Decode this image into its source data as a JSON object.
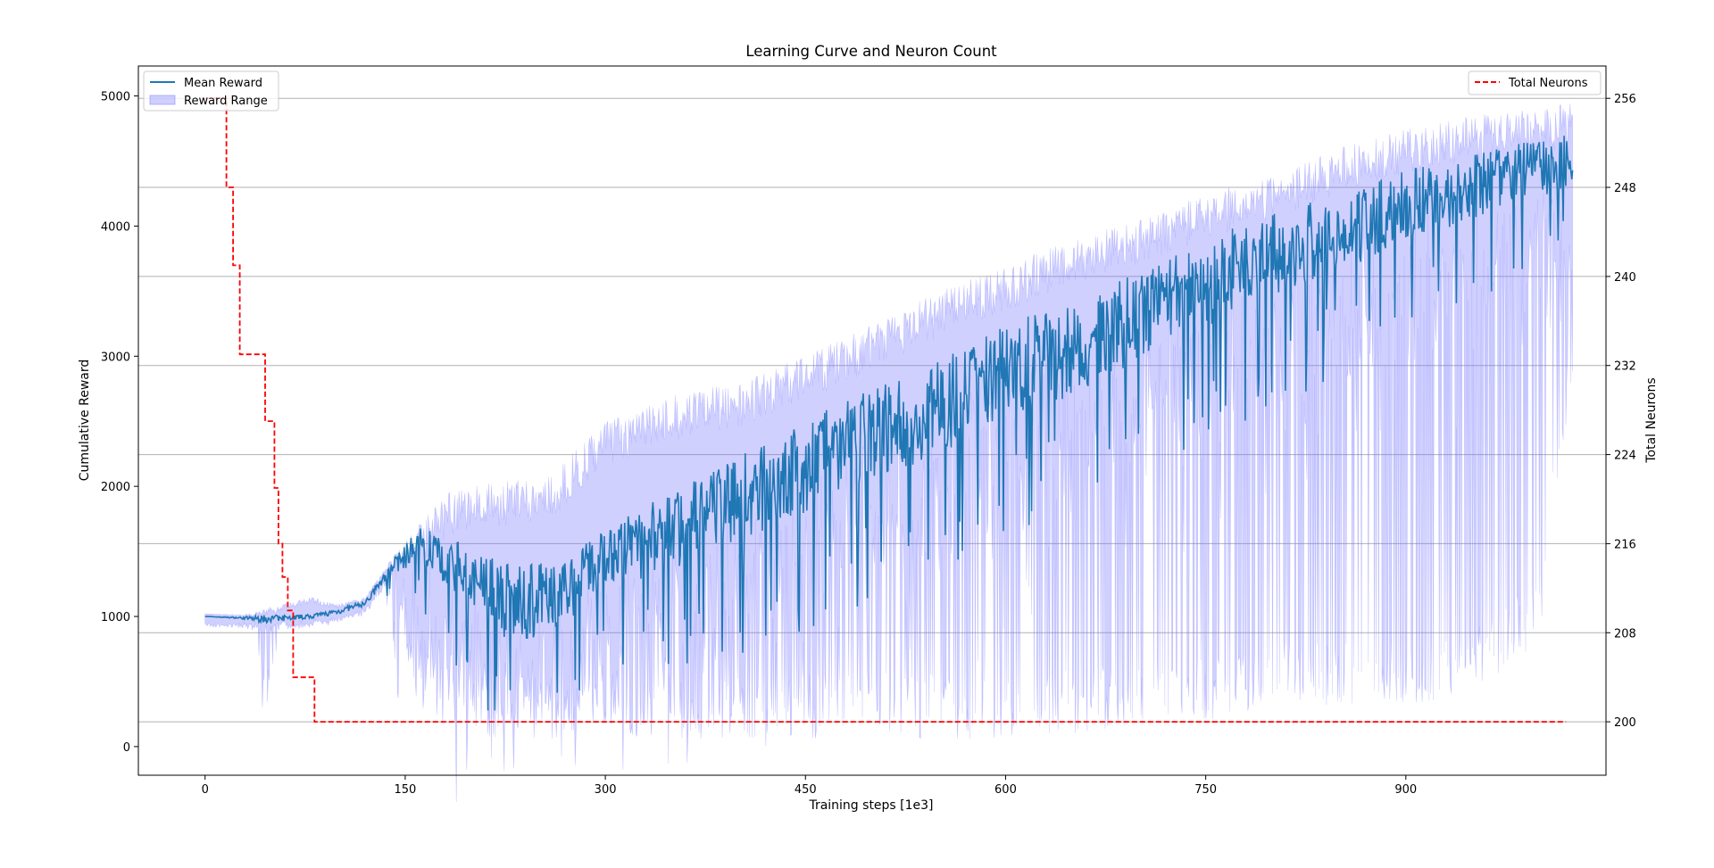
{
  "chart_data": {
    "type": "line",
    "title": "Learning Curve and Neuron Count",
    "xlabel": "Training steps [1e3]",
    "ylabel_left": "Cumulative Reward",
    "ylabel_right": "Total Neurons",
    "xlim": [
      -50,
      1050
    ],
    "ylim_left": [
      -220,
      5230
    ],
    "ylim_right": [
      195.2,
      258.9
    ],
    "x_ticks": [
      0,
      150,
      300,
      450,
      600,
      750,
      900
    ],
    "y_ticks_left": [
      0,
      1000,
      2000,
      3000,
      4000,
      5000
    ],
    "y_ticks_right": [
      200,
      208,
      216,
      224,
      232,
      240,
      248,
      256
    ],
    "grid": "horizontal on right axis",
    "colors": {
      "mean": "#1f77b4",
      "range_fill": "#7777ff",
      "neurons": "#ff0000"
    },
    "legend_left": {
      "placement": "top-left",
      "entries": [
        {
          "label": "Mean Reward",
          "style": "line"
        },
        {
          "label": "Reward Range",
          "style": "patch"
        }
      ]
    },
    "legend_right": {
      "placement": "top-right",
      "entries": [
        {
          "label": "Total Neurons",
          "style": "dashed"
        }
      ]
    },
    "series": [
      {
        "name": "Mean Reward",
        "axis": "left",
        "x": [
          0,
          25,
          45,
          60,
          80,
          100,
          120,
          140,
          160,
          180,
          200,
          230,
          260,
          300,
          350,
          400,
          450,
          500,
          550,
          600,
          650,
          700,
          750,
          800,
          850,
          900,
          950,
          1000,
          1025
        ],
        "y": [
          1000,
          990,
          980,
          990,
          1000,
          1040,
          1100,
          1380,
          1550,
          1450,
          1250,
          1100,
          1150,
          1450,
          1650,
          1900,
          2150,
          2400,
          2600,
          2900,
          3050,
          3300,
          3550,
          3800,
          3950,
          4150,
          4300,
          4450,
          4500
        ],
        "spread": [
          0,
          10,
          60,
          40,
          30,
          40,
          40,
          100,
          250,
          350,
          450,
          550,
          500,
          450,
          550,
          600,
          650,
          650,
          650,
          650,
          650,
          650,
          600,
          600,
          550,
          500,
          450,
          400,
          380
        ]
      },
      {
        "name": "Reward Range",
        "axis": "left",
        "x": [
          0,
          25,
          45,
          60,
          80,
          100,
          120,
          140,
          160,
          180,
          200,
          230,
          260,
          300,
          350,
          400,
          450,
          500,
          550,
          600,
          650,
          700,
          750,
          800,
          850,
          900,
          950,
          1000,
          1025
        ],
        "upper": [
          1000,
          1010,
          1060,
          1100,
          1150,
          1100,
          1150,
          1450,
          1700,
          1950,
          2000,
          2050,
          2100,
          2500,
          2700,
          2800,
          3000,
          3250,
          3500,
          3700,
          3900,
          4050,
          4250,
          4400,
          4600,
          4750,
          4850,
          4900,
          4950
        ],
        "lower": [
          1000,
          970,
          150,
          900,
          950,
          990,
          1020,
          1200,
          300,
          150,
          100,
          50,
          50,
          100,
          50,
          50,
          60,
          80,
          50,
          60,
          100,
          150,
          200,
          300,
          300,
          300,
          400,
          800,
          2800
        ]
      },
      {
        "name": "Total Neurons",
        "axis": "right",
        "steps_x": [
          11,
          16,
          21,
          26,
          30,
          35,
          38,
          42,
          45,
          48,
          52,
          55,
          58,
          62,
          66,
          70,
          74,
          78,
          82,
          1020
        ],
        "steps_y": [
          256,
          248,
          241,
          233,
          233,
          233,
          233,
          233,
          227,
          227,
          221,
          216,
          213,
          210,
          204,
          204,
          204,
          204,
          200,
          200
        ]
      }
    ]
  }
}
